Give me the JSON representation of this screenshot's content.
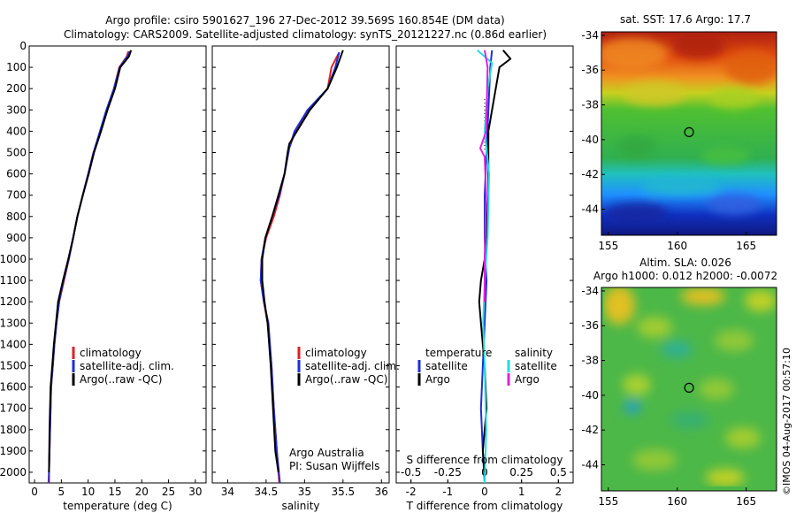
{
  "header": {
    "line1": "Argo profile: csiro 5901627_196 27-Dec-2012 39.569S 160.854E (DM data)",
    "line2": "Climatology: CARS2009. Satellite-adjusted climatology: synTS_20121227.nc (0.86d earlier)"
  },
  "credit": {
    "line1": "Argo Australia",
    "line2": "PI: Susan Wijffels"
  },
  "watermark": "©IMOS 04-Aug-2017 00:57:10",
  "colors": {
    "climatology": "#dd2222",
    "satellite": "#1f2fd8",
    "argo": "#000000",
    "sal_satellite": "#22dddd",
    "sal_argo": "#dd22dd"
  },
  "chart_data": [
    {
      "type": "line",
      "panel": "temperature",
      "xlabel": "temperature (deg C)",
      "ylabel": "",
      "xlim": [
        -1,
        32
      ],
      "ylim": [
        2050,
        0
      ],
      "xticks": [
        0,
        5,
        10,
        15,
        20,
        25,
        30
      ],
      "yticks": [
        0,
        100,
        200,
        300,
        400,
        500,
        600,
        700,
        800,
        900,
        1000,
        1100,
        1200,
        1300,
        1400,
        1500,
        1600,
        1700,
        1800,
        1900,
        2000
      ],
      "legend": {
        "placement": "lower-middle",
        "entries": [
          "climatology",
          "satellite-adj. clim.",
          "Argo(..raw -QC)"
        ]
      },
      "series": [
        {
          "name": "climatology",
          "color": "#dd2222",
          "x": [
            17.5,
            17.2,
            15.8,
            14.8,
            13.5,
            12.3,
            11.0,
            10.0,
            9.0,
            8.0,
            7.2,
            6.4,
            5.5,
            4.6,
            4.1,
            3.7,
            3.4,
            3.1,
            2.9,
            2.7,
            2.6
          ],
          "y": [
            25,
            50,
            100,
            200,
            300,
            400,
            500,
            600,
            700,
            800,
            900,
            1000,
            1100,
            1200,
            1300,
            1400,
            1500,
            1600,
            1800,
            2000,
            2050
          ]
        },
        {
          "name": "satellite-adj. clim.",
          "color": "#1f2fd8",
          "x": [
            17.8,
            17.3,
            15.9,
            14.8,
            13.4,
            12.2,
            11.0,
            10.0,
            9.0,
            8.0,
            7.2,
            6.4,
            5.4,
            4.6,
            4.1,
            3.7,
            3.4,
            3.1,
            2.9,
            2.7,
            2.7
          ],
          "y": [
            25,
            50,
            100,
            200,
            300,
            400,
            500,
            600,
            700,
            800,
            900,
            1000,
            1100,
            1200,
            1300,
            1400,
            1500,
            1600,
            1800,
            2000,
            2050
          ]
        },
        {
          "name": "Argo(..raw -QC)",
          "color": "#000000",
          "x": [
            18.0,
            17.6,
            16.0,
            15.0,
            13.6,
            12.4,
            11.1,
            10.1,
            9.0,
            8.0,
            7.2,
            6.3,
            5.3,
            4.4,
            4.0,
            3.6,
            3.3,
            3.0,
            2.8,
            2.7
          ],
          "y": [
            20,
            50,
            100,
            200,
            300,
            400,
            500,
            600,
            700,
            800,
            900,
            1000,
            1100,
            1200,
            1300,
            1400,
            1500,
            1600,
            1800,
            2000
          ]
        }
      ]
    },
    {
      "type": "line",
      "panel": "salinity",
      "xlabel": "salinity",
      "ylabel": "",
      "xlim": [
        33.8,
        36.1
      ],
      "ylim": [
        2050,
        0
      ],
      "xticks": [
        34,
        34.5,
        35,
        35.5,
        36
      ],
      "legend": {
        "placement": "lower-middle",
        "entries": [
          "climatology",
          "satellite-adj. clim.",
          "Argo(..raw -QC)"
        ]
      },
      "series": [
        {
          "name": "climatology",
          "color": "#dd2222",
          "x": [
            35.45,
            35.35,
            35.3,
            35.05,
            34.88,
            34.8,
            34.74,
            34.68,
            34.6,
            34.5,
            34.44,
            34.43,
            34.47,
            34.52,
            34.57,
            34.6,
            34.64,
            34.67
          ],
          "y": [
            30,
            100,
            200,
            300,
            400,
            480,
            600,
            700,
            800,
            900,
            1000,
            1100,
            1200,
            1300,
            1500,
            1700,
            1900,
            2050
          ]
        },
        {
          "name": "satellite-adj. clim.",
          "color": "#1f2fd8",
          "x": [
            35.45,
            35.4,
            35.3,
            35.04,
            34.87,
            34.8,
            34.74,
            34.67,
            34.58,
            34.49,
            34.44,
            34.43,
            34.47,
            34.53,
            34.57,
            34.6,
            34.64,
            34.68
          ],
          "y": [
            30,
            100,
            200,
            300,
            400,
            480,
            600,
            700,
            800,
            900,
            1000,
            1100,
            1200,
            1300,
            1500,
            1700,
            1900,
            2050
          ]
        },
        {
          "name": "Argo(..raw -QC)",
          "color": "#000000",
          "x": [
            35.5,
            35.42,
            35.3,
            35.07,
            34.9,
            34.8,
            34.78,
            34.74,
            34.66,
            34.58,
            34.49,
            34.45,
            34.45,
            34.48,
            34.52,
            34.56,
            34.59,
            34.62,
            34.66
          ],
          "y": [
            20,
            100,
            200,
            300,
            400,
            460,
            500,
            600,
            700,
            800,
            900,
            1000,
            1100,
            1200,
            1300,
            1500,
            1700,
            1900,
            2000
          ]
        }
      ]
    },
    {
      "type": "line",
      "panel": "differences",
      "xlabel": "T difference from climatology",
      "xlabel_top": "S difference from climatology",
      "xlim_T": [
        -2.4,
        2.4
      ],
      "xticks_T": [
        -2,
        -1,
        0,
        1,
        2
      ],
      "xlim_S": [
        -0.6,
        0.6
      ],
      "xticks_S": [
        -0.5,
        -0.25,
        0,
        0.25,
        0.5
      ],
      "ylim": [
        2050,
        0
      ],
      "legend": {
        "placement": "lower-middle",
        "groups": [
          {
            "title": "temperature",
            "entries": [
              "satellite",
              "Argo"
            ]
          },
          {
            "title": "salinity",
            "entries": [
              "satellite",
              "Argo"
            ]
          }
        ]
      },
      "series": [
        {
          "name": "temperature satellite",
          "color": "#1f2fd8",
          "scale": "T",
          "x": [
            0.2,
            0.15,
            0.1,
            0.05,
            0.0,
            0.0,
            0.02,
            0.05,
            0.0,
            -0.05,
            -0.1,
            -0.05,
            0.0
          ],
          "y": [
            20,
            100,
            300,
            500,
            700,
            900,
            1000,
            1100,
            1300,
            1500,
            1700,
            1900,
            2050
          ]
        },
        {
          "name": "temperature Argo",
          "color": "#000000",
          "scale": "T",
          "x": [
            0.5,
            0.7,
            0.4,
            0.3,
            0.1,
            0.1,
            0.0,
            -0.1,
            -0.15,
            -0.1,
            -0.05,
            0.0,
            0.05,
            -0.05,
            0.0
          ],
          "y": [
            20,
            60,
            100,
            200,
            400,
            700,
            1000,
            1100,
            1200,
            1300,
            1400,
            1500,
            1700,
            1900,
            2000
          ]
        },
        {
          "name": "salinity satellite",
          "color": "#22dddd",
          "scale": "S",
          "x": [
            -0.05,
            0.05,
            0.02,
            0.0,
            0.03,
            0.02,
            0.0,
            -0.01,
            0.0,
            0.01,
            0.0
          ],
          "y": [
            20,
            80,
            200,
            400,
            600,
            900,
            1100,
            1300,
            1500,
            1800,
            2050
          ]
        },
        {
          "name": "salinity Argo",
          "color": "#dd22dd",
          "scale": "S",
          "x": [
            0.0,
            0.02,
            0.01,
            -0.03,
            0.0,
            0.01,
            0.0,
            0.0
          ],
          "y": [
            20,
            100,
            400,
            480,
            520,
            700,
            1000,
            1200
          ]
        }
      ]
    },
    {
      "type": "heatmap",
      "panel": "sst-map",
      "title": "sat. SST: 17.6 Argo: 17.7",
      "xlim": [
        154.5,
        167.2
      ],
      "ylim": [
        -45.5,
        -33.8
      ],
      "xticks": [
        155,
        160,
        165
      ],
      "yticks": [
        -34,
        -36,
        -38,
        -40,
        -42,
        -44
      ],
      "marker": {
        "lon": 160.854,
        "lat": -39.569
      }
    },
    {
      "type": "heatmap",
      "panel": "sla-map",
      "title": "Altim. SLA: 0.026",
      "subtitle": "Argo h1000: 0.012 h2000: -0.0072",
      "xlim": [
        154.5,
        167.2
      ],
      "ylim": [
        -45.5,
        -33.8
      ],
      "xticks": [
        155,
        160,
        165
      ],
      "yticks": [
        -34,
        -36,
        -38,
        -40,
        -42,
        -44
      ],
      "marker": {
        "lon": 160.854,
        "lat": -39.569
      }
    }
  ]
}
